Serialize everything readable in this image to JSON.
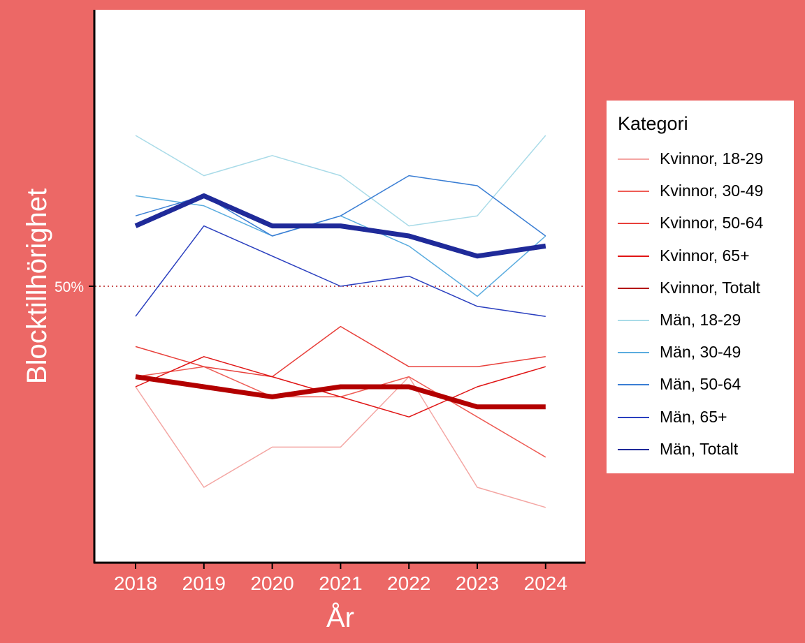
{
  "chart_data": {
    "type": "line",
    "title": "",
    "xlabel": "År",
    "ylabel": "Blocktillhörighet",
    "categories": [
      "2018",
      "2019",
      "2020",
      "2021",
      "2022",
      "2023",
      "2024"
    ],
    "ylim": [
      0.225,
      0.775
    ],
    "reference_line": {
      "value": 0.5,
      "label": "50%",
      "style": "dotted",
      "color": "#b71c1c"
    },
    "grid": false,
    "legend": {
      "title": "Kategori",
      "position": "right"
    },
    "series": [
      {
        "name": "Kvinnor, 18-29",
        "color": "#f4a6a3",
        "width": 1.5,
        "values": [
          0.4,
          0.3,
          0.34,
          0.34,
          0.41,
          0.3,
          0.28
        ]
      },
      {
        "name": "Kvinnor, 30-49",
        "color": "#ee5c55",
        "width": 1.5,
        "values": [
          0.41,
          0.42,
          0.39,
          0.39,
          0.41,
          0.37,
          0.33
        ]
      },
      {
        "name": "Kvinnor, 50-64",
        "color": "#e8403b",
        "width": 1.5,
        "values": [
          0.44,
          0.42,
          0.41,
          0.46,
          0.42,
          0.42,
          0.43
        ]
      },
      {
        "name": "Kvinnor, 65+",
        "color": "#e01515",
        "width": 1.5,
        "values": [
          0.4,
          0.43,
          0.41,
          0.39,
          0.37,
          0.4,
          0.42
        ]
      },
      {
        "name": "Kvinnor, Totalt",
        "color": "#b30000",
        "width": 7,
        "values": [
          0.41,
          0.4,
          0.39,
          0.4,
          0.4,
          0.38,
          0.38
        ]
      },
      {
        "name": "Män, 18-29",
        "color": "#a9dbe8",
        "width": 1.5,
        "values": [
          0.65,
          0.61,
          0.63,
          0.61,
          0.56,
          0.57,
          0.65
        ]
      },
      {
        "name": "Män, 30-49",
        "color": "#5aacdf",
        "width": 1.5,
        "values": [
          0.59,
          0.58,
          0.55,
          0.57,
          0.54,
          0.49,
          0.55
        ]
      },
      {
        "name": "Män, 50-64",
        "color": "#3a7ed4",
        "width": 1.5,
        "values": [
          0.57,
          0.59,
          0.55,
          0.57,
          0.61,
          0.6,
          0.55
        ]
      },
      {
        "name": "Män, 65+",
        "color": "#2a3fbf",
        "width": 1.5,
        "values": [
          0.47,
          0.56,
          0.53,
          0.5,
          0.51,
          0.48,
          0.47
        ]
      },
      {
        "name": "Män, Totalt",
        "color": "#1f2a99",
        "width": 7,
        "values": [
          0.56,
          0.59,
          0.56,
          0.56,
          0.55,
          0.53,
          0.54
        ]
      }
    ]
  }
}
